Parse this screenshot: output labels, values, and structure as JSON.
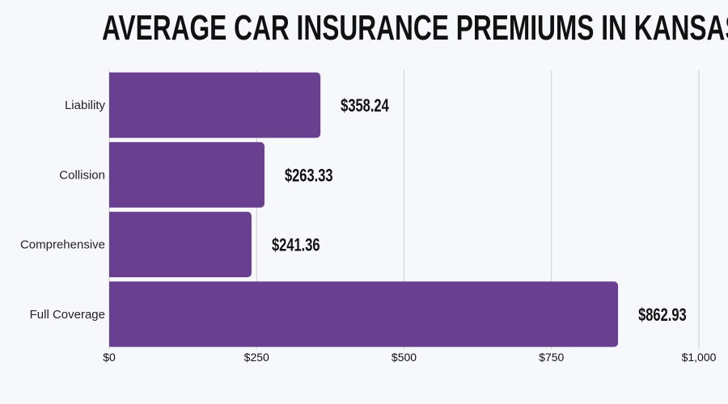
{
  "chart_data": {
    "type": "bar",
    "orientation": "horizontal",
    "title": "AVERAGE CAR INSURANCE PREMIUMS IN KANSAS",
    "categories": [
      "Liability",
      "Collision",
      "Comprehensive",
      "Full Coverage"
    ],
    "values": [
      358.24,
      263.33,
      241.36,
      862.93
    ],
    "data_labels": [
      "$358.24",
      "$263.33",
      "$241.36",
      "$862.93"
    ],
    "xlabel": "",
    "ylabel": "",
    "xlim": [
      0,
      1000
    ],
    "xticks": [
      0,
      250,
      500,
      750,
      1000
    ],
    "xtick_labels": [
      "$0",
      "$250",
      "$500",
      "$750",
      "$1,000"
    ],
    "grid": true,
    "colors": {
      "bar": "#693f8f",
      "background": "#f7f8fc",
      "grid": "#cccccc"
    }
  }
}
